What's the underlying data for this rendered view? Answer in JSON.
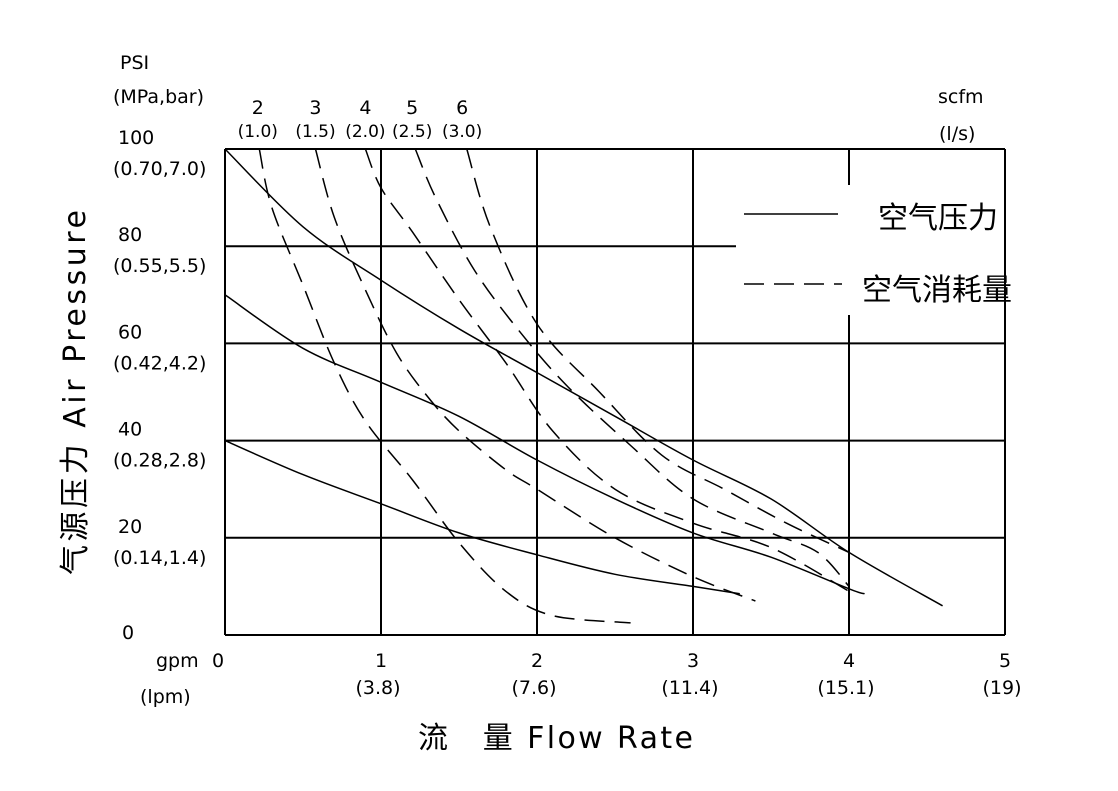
{
  "chart_data": {
    "type": "line",
    "title": "",
    "xlabel": "流　量 Flow Rate",
    "ylabel": "气源压力 Air Pressure",
    "y_unit_label": [
      "PSI",
      "(MPa,bar)"
    ],
    "x_unit_label": [
      "gpm",
      "(lpm)"
    ],
    "air_unit_label": [
      "scfm",
      "(l/s)"
    ],
    "xlim": [
      0,
      5
    ],
    "ylim": [
      0,
      100
    ],
    "grid": true,
    "legend": {
      "placement": "top-right",
      "items": [
        {
          "label": "空气压力",
          "style": "solid"
        },
        {
          "label": "空气消耗量",
          "style": "dashed"
        }
      ]
    },
    "x_ticks": [
      {
        "value": 0,
        "label": "0",
        "sub": ""
      },
      {
        "value": 1,
        "label": "1",
        "sub": "(3.8)"
      },
      {
        "value": 2,
        "label": "2",
        "sub": "(7.6)"
      },
      {
        "value": 3,
        "label": "3",
        "sub": "(11.4)"
      },
      {
        "value": 4,
        "label": "4",
        "sub": "(15.1)"
      },
      {
        "value": 5,
        "label": "5",
        "sub": "(19)"
      }
    ],
    "y_ticks": [
      {
        "value": 0,
        "label": "0",
        "sub": ""
      },
      {
        "value": 20,
        "label": "20",
        "sub": "(0.14,1.4)"
      },
      {
        "value": 40,
        "label": "40",
        "sub": "(0.28,2.8)"
      },
      {
        "value": 60,
        "label": "60",
        "sub": "(0.42,4.2)"
      },
      {
        "value": 80,
        "label": "80",
        "sub": "(0.55,5.5)"
      },
      {
        "value": 100,
        "label": "100",
        "sub": "(0.70,7.0)"
      }
    ],
    "air_consumption_labels": [
      {
        "label": "2",
        "sub": "(1.0)",
        "x": 0.21
      },
      {
        "label": "3",
        "sub": "(1.5)",
        "x": 0.58
      },
      {
        "label": "4",
        "sub": "(2.0)",
        "x": 0.9
      },
      {
        "label": "5",
        "sub": "(2.5)",
        "x": 1.2
      },
      {
        "label": "6",
        "sub": "(3.0)",
        "x": 1.52
      }
    ],
    "series": [
      {
        "style": "solid",
        "points": [
          [
            0,
            100
          ],
          [
            0.5,
            84
          ],
          [
            1,
            73
          ],
          [
            1.5,
            63
          ],
          [
            2,
            54
          ],
          [
            2.5,
            45
          ],
          [
            3,
            36
          ],
          [
            3.5,
            28
          ],
          [
            4,
            17
          ],
          [
            4.6,
            6
          ]
        ]
      },
      {
        "style": "solid",
        "points": [
          [
            0,
            70
          ],
          [
            0.5,
            59
          ],
          [
            1,
            52
          ],
          [
            1.5,
            45
          ],
          [
            2,
            36
          ],
          [
            2.5,
            28
          ],
          [
            3,
            21
          ],
          [
            3.5,
            16
          ],
          [
            4,
            9.5
          ],
          [
            4.1,
            8.5
          ]
        ]
      },
      {
        "style": "solid",
        "points": [
          [
            0,
            40
          ],
          [
            0.5,
            33
          ],
          [
            1,
            27
          ],
          [
            1.5,
            21
          ],
          [
            2,
            16.5
          ],
          [
            2.5,
            12.5
          ],
          [
            3,
            10
          ],
          [
            3.3,
            8.5
          ]
        ]
      },
      {
        "style": "dashed",
        "points": [
          [
            0.22,
            100
          ],
          [
            0.3,
            88
          ],
          [
            0.5,
            72
          ],
          [
            0.7,
            56
          ],
          [
            0.9,
            44
          ],
          [
            1.2,
            32
          ],
          [
            1.5,
            19
          ],
          [
            1.8,
            9
          ],
          [
            2.1,
            4
          ],
          [
            2.6,
            2.5
          ]
        ]
      },
      {
        "style": "dashed",
        "points": [
          [
            0.58,
            100
          ],
          [
            0.7,
            86
          ],
          [
            0.9,
            71
          ],
          [
            1.1,
            58
          ],
          [
            1.3,
            49
          ],
          [
            1.5,
            42
          ],
          [
            1.8,
            34
          ],
          [
            2,
            30
          ],
          [
            2.5,
            20
          ],
          [
            3,
            12
          ],
          [
            3.4,
            7
          ]
        ]
      },
      {
        "style": "dashed",
        "points": [
          [
            0.9,
            100
          ],
          [
            1,
            92
          ],
          [
            1.2,
            83
          ],
          [
            1.5,
            69
          ],
          [
            1.8,
            56
          ],
          [
            2.1,
            42
          ],
          [
            2.5,
            30
          ],
          [
            3,
            23
          ],
          [
            3.5,
            18
          ],
          [
            4,
            9
          ]
        ]
      },
      {
        "style": "dashed",
        "points": [
          [
            1.22,
            100
          ],
          [
            1.35,
            90
          ],
          [
            1.6,
            75
          ],
          [
            1.9,
            62
          ],
          [
            2.2,
            51
          ],
          [
            2.6,
            39
          ],
          [
            3,
            28
          ],
          [
            3.5,
            21
          ],
          [
            3.8,
            17
          ],
          [
            4,
            10
          ]
        ]
      },
      {
        "style": "dashed",
        "points": [
          [
            1.55,
            100
          ],
          [
            1.7,
            84
          ],
          [
            2,
            64
          ],
          [
            2.4,
            50
          ],
          [
            2.8,
            37
          ],
          [
            3.2,
            30
          ],
          [
            3.6,
            23
          ],
          [
            4,
            17
          ]
        ]
      }
    ]
  }
}
